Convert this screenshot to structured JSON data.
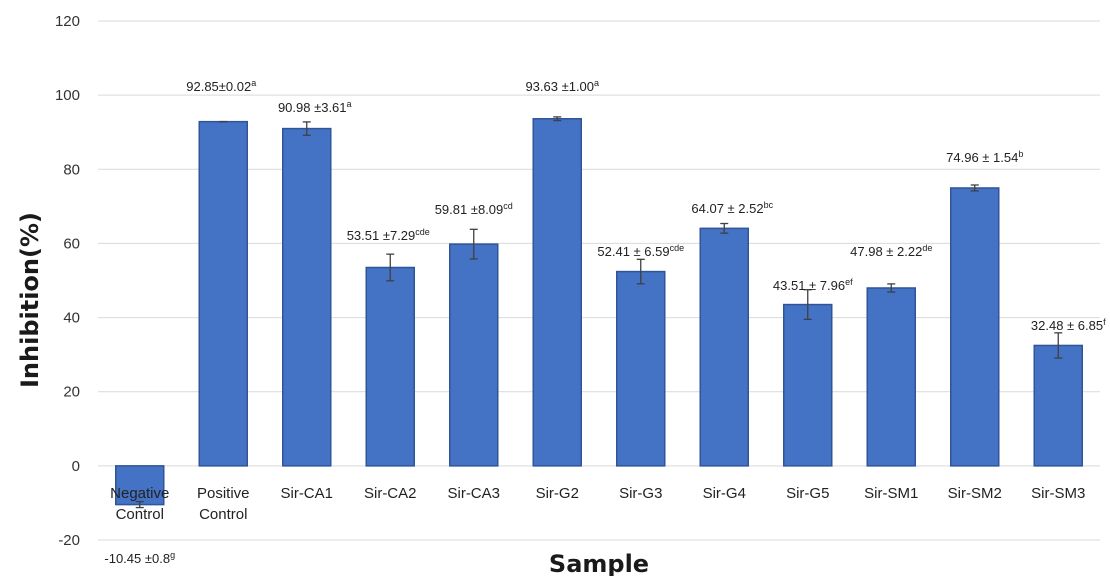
{
  "chart_data": {
    "type": "bar",
    "title": "",
    "xlabel": "Sample",
    "ylabel": "Inhibition(%)",
    "ylim": [
      -20,
      120
    ],
    "ytick_step": 20,
    "yticks": [
      "-20",
      "0",
      "20",
      "40",
      "60",
      "80",
      "100",
      "120"
    ],
    "grid": true,
    "legend": "none",
    "bar_color": "#4472C4",
    "bar_edge_color": "#2F5597",
    "categories": [
      [
        "Negative",
        "Control"
      ],
      [
        "Positive",
        "Control"
      ],
      [
        "Sir-CA1"
      ],
      [
        "Sir-CA2"
      ],
      [
        "Sir-CA3"
      ],
      [
        "Sir-G2"
      ],
      [
        "Sir-G3"
      ],
      [
        "Sir-G4"
      ],
      [
        "Sir-G5"
      ],
      [
        "Sir-SM1"
      ],
      [
        "Sir-SM2"
      ],
      [
        "Sir-SM3"
      ]
    ],
    "values": [
      -10.45,
      92.85,
      90.98,
      53.51,
      59.81,
      93.63,
      52.41,
      64.07,
      43.51,
      47.98,
      74.96,
      32.48
    ],
    "errors": [
      0.8,
      0.02,
      1.8,
      3.6,
      4.0,
      0.5,
      3.3,
      1.3,
      4.0,
      1.1,
      0.8,
      3.4
    ],
    "data_labels": [
      {
        "text": "-10.45 ±0.8",
        "sup": "g"
      },
      {
        "text": "92.85±0.02",
        "sup": "a"
      },
      {
        "text": "90.98 ±3.61",
        "sup": "a"
      },
      {
        "text": "53.51 ±7.29",
        "sup": "cde"
      },
      {
        "text": "59.81 ±8.09",
        "sup": "cd"
      },
      {
        "text": "93.63 ±1.00",
        "sup": "a"
      },
      {
        "text": "52.41 ± 6.59",
        "sup": "cde"
      },
      {
        "text": "64.07 ± 2.52",
        "sup": "bc"
      },
      {
        "text": "43.51 ± 7.96",
        "sup": "ef"
      },
      {
        "text": "47.98 ± 2.22",
        "sup": "de"
      },
      {
        "text": "74.96 ± 1.54",
        "sup": "b"
      },
      {
        "text": "32.48 ± 6.85",
        "sup": "f"
      }
    ]
  }
}
